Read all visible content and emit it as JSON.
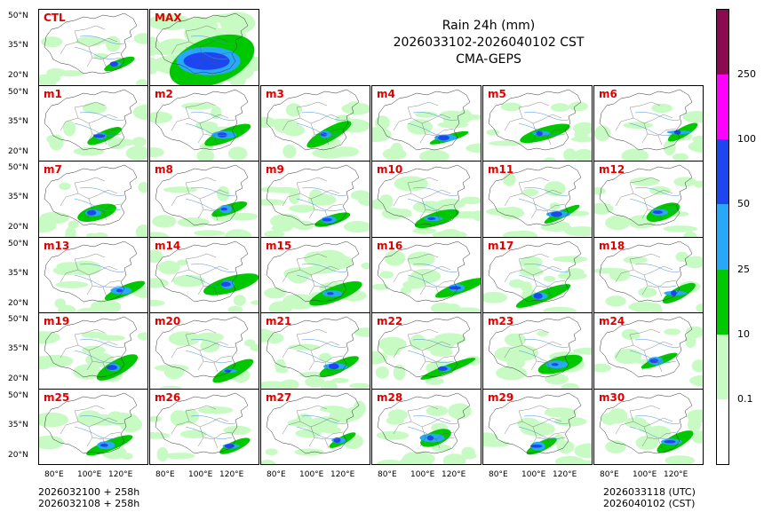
{
  "title": {
    "line1": "Rain 24h (mm)",
    "line2": "2026033102-2026040102 CST",
    "line3": "CMA-GEPS"
  },
  "lat_labels": [
    "50°N",
    "35°N",
    "20°N"
  ],
  "lon_labels": [
    "80°E",
    "100°E",
    "120°E"
  ],
  "panels": [
    "CTL",
    "MAX",
    "m1",
    "m2",
    "m3",
    "m4",
    "m5",
    "m6",
    "m7",
    "m8",
    "m9",
    "m10",
    "m11",
    "m12",
    "m13",
    "m14",
    "m15",
    "m16",
    "m17",
    "m18",
    "m19",
    "m20",
    "m21",
    "m22",
    "m23",
    "m24",
    "m25",
    "m26",
    "m27",
    "m28",
    "m29",
    "m30"
  ],
  "footer": {
    "left_line1": "2026032100 + 258h",
    "left_line2": "2026032108 + 258h",
    "right_line1": "2026033118 (UTC)",
    "right_line2": "2026040102 (CST)"
  },
  "colorbar": {
    "levels": [
      "0.1",
      "10",
      "25",
      "50",
      "100",
      "250"
    ],
    "colors": [
      "#ffffff",
      "#c8fac4",
      "#00c800",
      "#28a8f8",
      "#1e46f0",
      "#ff00ff",
      "#8c0a50"
    ]
  }
}
